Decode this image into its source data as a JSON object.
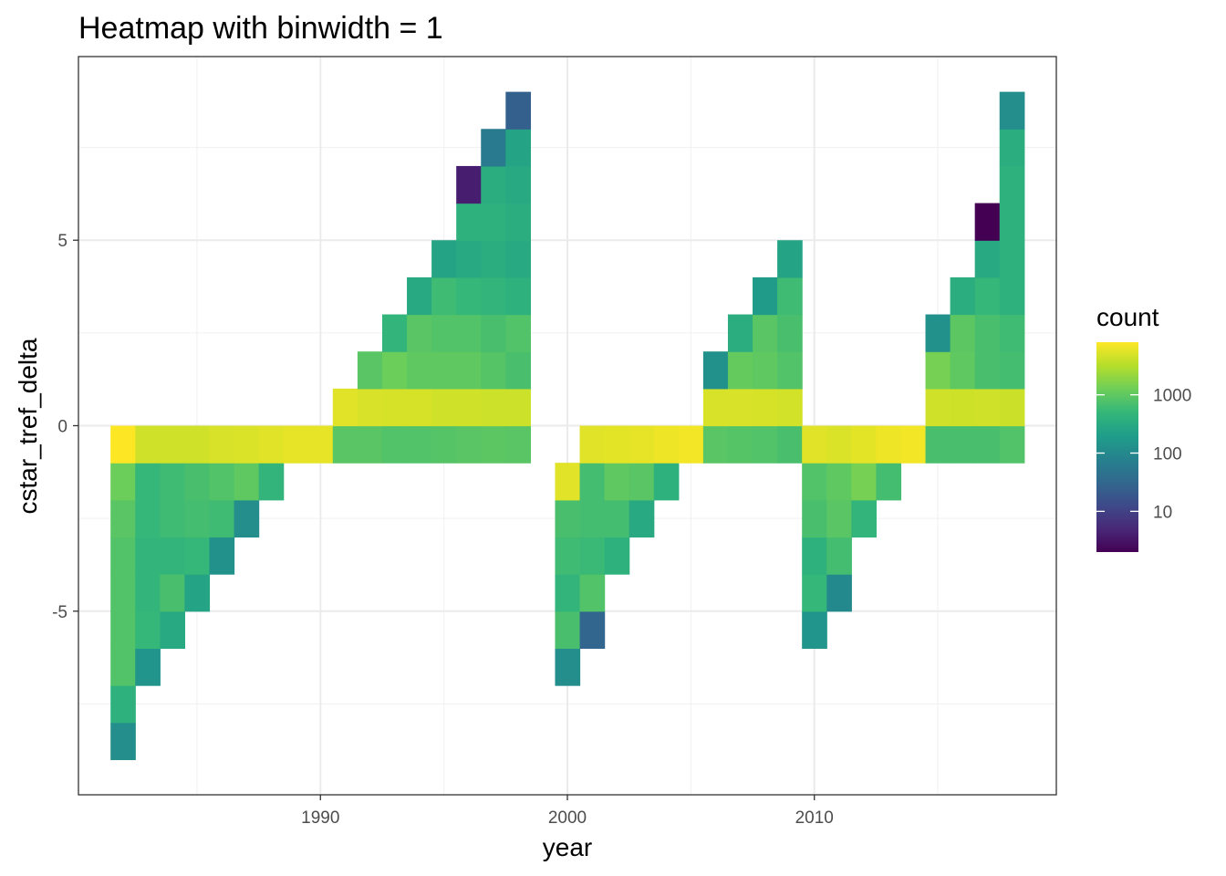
{
  "chart_data": {
    "type": "heatmap",
    "title": "Heatmap with binwidth = 1",
    "xlabel": "year",
    "ylabel": "cstar_tref_delta",
    "xlim": [
      1980.2,
      2019.8
    ],
    "ylim": [
      -9.95,
      9.95
    ],
    "x_ticks": [
      1990,
      2000,
      2010
    ],
    "y_ticks": [
      -5,
      0,
      5
    ],
    "grid": true,
    "binwidth": 1,
    "legend": {
      "title": "count",
      "scale": "log10",
      "palette": "viridis",
      "range": [
        2,
        8000
      ],
      "ticks": [
        10,
        100,
        1000
      ],
      "tick_labels": [
        "10",
        "100",
        "1000"
      ],
      "placement": "right"
    },
    "palette_stops": [
      "#440154",
      "#482878",
      "#3e4a89",
      "#31688e",
      "#26828e",
      "#1f9e89",
      "#35b779",
      "#6ece58",
      "#b5de2b",
      "#fde725"
    ],
    "bins_note": "each column: year center, bin rows listed from y_start upward (each bin spans y to y+1), counts",
    "columns": [
      {
        "year": 1982,
        "y_start": -9,
        "counts": [
          120,
          400,
          800,
          800,
          800,
          800,
          900,
          1200,
          8000
        ]
      },
      {
        "year": 1983,
        "y_start": -7,
        "counts": [
          150,
          500,
          450,
          450,
          500,
          500,
          4500
        ]
      },
      {
        "year": 1984,
        "y_start": -6,
        "counts": [
          300,
          700,
          450,
          600,
          600,
          4500
        ]
      },
      {
        "year": 1985,
        "y_start": -5,
        "counts": [
          250,
          500,
          650,
          700,
          4500
        ]
      },
      {
        "year": 1986,
        "y_start": -4,
        "counts": [
          130,
          600,
          800,
          5000
        ]
      },
      {
        "year": 1987,
        "y_start": -3,
        "counts": [
          120,
          1000,
          5200
        ]
      },
      {
        "year": 1988,
        "y_start": -2,
        "counts": [
          450,
          5500
        ]
      },
      {
        "year": 1989,
        "y_start": -1,
        "counts": [
          6000
        ]
      },
      {
        "year": 1990,
        "y_start": -1,
        "counts": [
          6000
        ]
      },
      {
        "year": 1991,
        "y_start": -1,
        "counts": [
          900,
          5500
        ]
      },
      {
        "year": 1992,
        "y_start": -1,
        "counts": [
          900,
          5000,
          900
        ]
      },
      {
        "year": 1993,
        "y_start": -1,
        "counts": [
          800,
          4800,
          1200,
          450
        ]
      },
      {
        "year": 1994,
        "y_start": -1,
        "counts": [
          800,
          4800,
          1000,
          900,
          300
        ]
      },
      {
        "year": 1995,
        "y_start": -1,
        "counts": [
          850,
          4500,
          1000,
          800,
          600,
          250
        ]
      },
      {
        "year": 1996,
        "y_start": -1,
        "counts": [
          900,
          4500,
          1000,
          800,
          500,
          300,
          400,
          4
        ]
      },
      {
        "year": 1997,
        "y_start": -1,
        "counts": [
          950,
          4300,
          850,
          700,
          450,
          350,
          400,
          350,
          60
        ]
      },
      {
        "year": 1998,
        "y_start": -1,
        "counts": [
          900,
          4300,
          700,
          800,
          400,
          300,
          350,
          300,
          250,
          25
        ]
      },
      {
        "year": 2000,
        "y_start": -7,
        "counts": [
          120,
          700,
          450,
          600,
          700,
          5500
        ]
      },
      {
        "year": 2001,
        "y_start": -6,
        "counts": [
          30,
          800,
          550,
          650,
          650,
          5500
        ]
      },
      {
        "year": 2002,
        "y_start": -4,
        "counts": [
          400,
          650,
          1000,
          5800
        ]
      },
      {
        "year": 2003,
        "y_start": -3,
        "counts": [
          300,
          900,
          6000
        ]
      },
      {
        "year": 2004,
        "y_start": -2,
        "counts": [
          400,
          6500
        ]
      },
      {
        "year": 2005,
        "y_start": -1,
        "counts": [
          7000
        ]
      },
      {
        "year": 2006,
        "y_start": -1,
        "counts": [
          900,
          5000,
          130
        ]
      },
      {
        "year": 2007,
        "y_start": -1,
        "counts": [
          850,
          5000,
          1100,
          350
        ]
      },
      {
        "year": 2008,
        "y_start": -1,
        "counts": [
          800,
          4800,
          1000,
          900,
          180
        ]
      },
      {
        "year": 2009,
        "y_start": -1,
        "counts": [
          700,
          4600,
          800,
          700,
          600,
          250
        ]
      },
      {
        "year": 2010,
        "y_start": -6,
        "counts": [
          150,
          500,
          400,
          700,
          800,
          5500
        ]
      },
      {
        "year": 2011,
        "y_start": -5,
        "counts": [
          100,
          650,
          900,
          1000,
          5200
        ]
      },
      {
        "year": 2012,
        "y_start": -3,
        "counts": [
          450,
          1400,
          5800
        ]
      },
      {
        "year": 2013,
        "y_start": -2,
        "counts": [
          650,
          6500
        ]
      },
      {
        "year": 2014,
        "y_start": -1,
        "counts": [
          7000
        ]
      },
      {
        "year": 2015,
        "y_start": -1,
        "counts": [
          700,
          4500,
          1400,
          130
        ]
      },
      {
        "year": 2016,
        "y_start": -1,
        "counts": [
          700,
          4400,
          1000,
          950,
          350
        ]
      },
      {
        "year": 2017,
        "y_start": -1,
        "counts": [
          700,
          4500,
          700,
          700,
          500,
          300,
          2
        ]
      },
      {
        "year": 2018,
        "y_start": -1,
        "counts": [
          800,
          4200,
          650,
          600,
          400,
          400,
          400,
          400,
          350,
          120
        ]
      }
    ]
  }
}
